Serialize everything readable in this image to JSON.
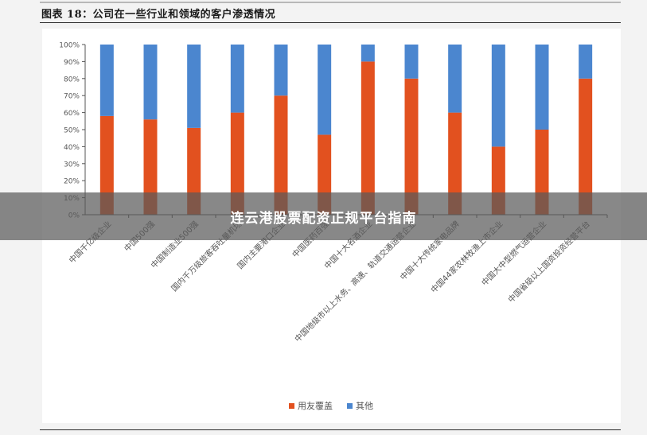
{
  "document": {
    "figure_title": "图表 18：公司在一些行业和领域的客户渗透情况"
  },
  "banner": {
    "text": "连云港股票配资正规平台指南"
  },
  "colors": {
    "user_coverage": "#e2511f",
    "other": "#4b86cf",
    "axis": "#555555",
    "text": "#555555"
  },
  "chart_data": {
    "type": "bar",
    "stacked": true,
    "title": "",
    "xlabel": "",
    "ylabel": "",
    "ylim": [
      0,
      100
    ],
    "y_ticks": [
      "0%",
      "10%",
      "20%",
      "30%",
      "40%",
      "50%",
      "60%",
      "70%",
      "80%",
      "90%",
      "100%"
    ],
    "categories": [
      "中国千亿级企业",
      "中国500强",
      "中国制造业500强",
      "国内千万级旅客吞吐量机场",
      "国内主要港口企业",
      "中国医药百强",
      "中国十大名酒企业",
      "中国地级市以上水务、高速、轨道交通运营企业",
      "中国十大传统家电品牌",
      "中国44家农林牧渔上市企业",
      "中国大中型燃气运营企业",
      "中国省级以上国资投资经营平台"
    ],
    "series": [
      {
        "name": "用友覆盖",
        "values": [
          58,
          56,
          51,
          60,
          70,
          47,
          90,
          80,
          60,
          40,
          50,
          80
        ]
      },
      {
        "name": "其他",
        "values": [
          42,
          44,
          49,
          40,
          30,
          53,
          10,
          20,
          40,
          60,
          50,
          20
        ]
      }
    ],
    "legend_position": "bottom",
    "grid": false
  }
}
